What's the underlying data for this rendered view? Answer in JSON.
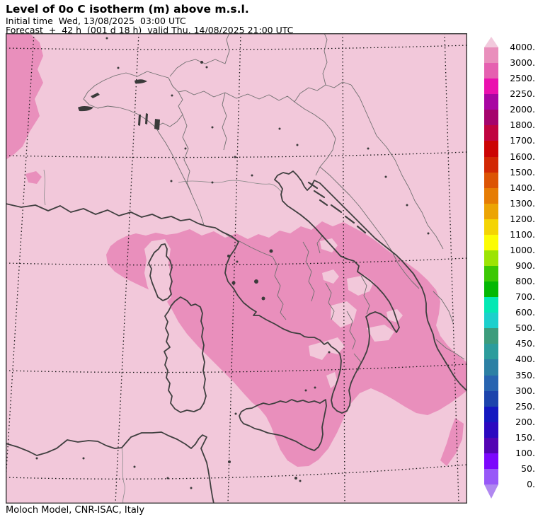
{
  "header": {
    "title": "Level of 0o C isotherm (m) above m.s.l.",
    "line2": "Initial time  Wed, 13/08/2025  03:00 UTC",
    "line3": "Forecast  +  42 h  (001 d 18 h)  valid Thu, 14/08/2025 21:00 UTC"
  },
  "footer": {
    "credit": "Moloch Model, CNR-ISAC, Italy"
  },
  "palette": {
    "map_background": "#f2c8da",
    "band_3000_4000": "#e98fbc",
    "coastline": "#3f3f3f",
    "border": "#6f6f6f",
    "grid": "#141414",
    "frame": "#333333",
    "lake": "#3a3a3a",
    "river": "#8a8a8a"
  },
  "colorbar": {
    "arrow_top_color": "#f2cadd",
    "arrow_bottom_color": "#b088f0",
    "tick_labels": [
      "4000.",
      "3000.",
      "2500.",
      "2250.",
      "2000.",
      "1800.",
      "1700.",
      "1600.",
      "1500.",
      "1400.",
      "1300.",
      "1200.",
      "1100.",
      "1000.",
      "900.",
      "800.",
      "700.",
      "600.",
      "500.",
      "450.",
      "400.",
      "350.",
      "300.",
      "250.",
      "200.",
      "150.",
      "100.",
      "50.",
      "0."
    ],
    "segment_colors_top_to_bottom": [
      "#e98fbc",
      "#e560b0",
      "#ea10ae",
      "#a806a2",
      "#a5046d",
      "#c00440",
      "#cc0404",
      "#d22804",
      "#dc5404",
      "#e67c04",
      "#eca404",
      "#f4d404",
      "#fcfc04",
      "#9ce404",
      "#3cc804",
      "#04b804",
      "#04e8b4",
      "#1cd0cc",
      "#3c9c7c",
      "#2c9c9c",
      "#2c80a4",
      "#2864b0",
      "#1c44ac",
      "#1418c0",
      "#2c08c0",
      "#5404b4",
      "#7c08fc",
      "#9858f8"
    ]
  },
  "chart_data": {
    "type": "heatmap",
    "title": "Level of 0o C isotherm (m) above m.s.l.",
    "initial_time": "Wed, 13/08/2025 03:00 UTC",
    "forecast_lead": "+ 42 h (001 d 18 h)",
    "valid_time": "Thu, 14/08/2025 21:00 UTC",
    "model": "Moloch Model, CNR-ISAC, Italy",
    "units": "m",
    "region": "Italy and central Mediterranean",
    "legend_position": "right",
    "grid": "dotted lat/lon graticule",
    "colorbar_ticks": [
      4000,
      3000,
      2500,
      2250,
      2000,
      1800,
      1700,
      1600,
      1500,
      1400,
      1300,
      1200,
      1100,
      1000,
      900,
      800,
      700,
      600,
      500,
      450,
      400,
      350,
      300,
      250,
      200,
      150,
      100,
      50,
      0
    ],
    "value_field_summary": [
      {
        "band": "> 4000 m",
        "color": "#f2c8da",
        "area": "most of the domain (Alps, Po valley, western Mediterranean, North Africa, Balkans)"
      },
      {
        "band": "3000-4000 m",
        "color": "#e98fbc",
        "area": "central and southern Italy, Tyrrhenian Sea, southern Adriatic to Albanian coast, Calabria, NE Sicily and sea south of Sicily; small patches in NW corner and Ionian Sea"
      }
    ]
  }
}
